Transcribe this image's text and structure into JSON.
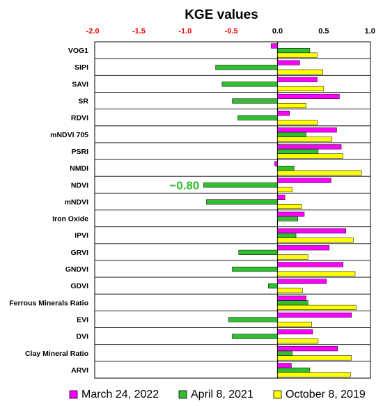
{
  "chart_data": {
    "type": "bar",
    "orientation": "horizontal",
    "title": "KGE values",
    "xlim": [
      -2.0,
      1.0
    ],
    "xticks": [
      "-2.0",
      "-1.5",
      "-1.0",
      "-0.5",
      "0.0",
      "0.5",
      "1.0"
    ],
    "tick_colors": {
      "negative": "#ff0000",
      "nonnegative": "#000000"
    },
    "categories": [
      "VOG1",
      "SIPI",
      "SAVI",
      "SR",
      "RDVI",
      "mNDVI 705",
      "PSRI",
      "NMDI",
      "NDVI",
      "mNDVI",
      "Iron Oxide",
      "IPVI",
      "GRVI",
      "GNDVI",
      "GDVI",
      "Ferrous Minerals Ratio",
      "EVI",
      "DVI",
      "Clay Mineral Ratio",
      "ARVI"
    ],
    "series": [
      {
        "name": "March 24, 2022",
        "color": "#ff00ff",
        "values": [
          -0.07,
          0.24,
          0.43,
          0.67,
          0.13,
          0.64,
          0.69,
          -0.03,
          0.58,
          0.08,
          0.29,
          0.74,
          0.56,
          0.71,
          0.53,
          0.31,
          0.8,
          0.38,
          0.65,
          0.15
        ]
      },
      {
        "name": "April 8, 2021",
        "color": "#2fbf2f",
        "values": [
          0.35,
          -0.67,
          -0.6,
          -0.49,
          -0.43,
          0.31,
          0.44,
          0.18,
          -0.8,
          -0.77,
          0.22,
          0.2,
          -0.42,
          -0.49,
          -0.1,
          0.33,
          -0.53,
          -0.49,
          0.16,
          0.35
        ]
      },
      {
        "name": "October 8, 2019",
        "color": "#ffff00",
        "values": [
          0.43,
          0.49,
          0.5,
          0.31,
          0.43,
          0.59,
          0.71,
          0.91,
          0.16,
          0.26,
          0.0,
          0.82,
          0.33,
          0.84,
          0.27,
          0.85,
          0.37,
          0.44,
          0.8,
          0.79
        ]
      }
    ],
    "annotations": [
      {
        "text": "−0.80",
        "category": "NDVI",
        "series": "April 8, 2021",
        "color": "#2fbf2f"
      }
    ],
    "legend_position": "bottom",
    "grid": false
  }
}
